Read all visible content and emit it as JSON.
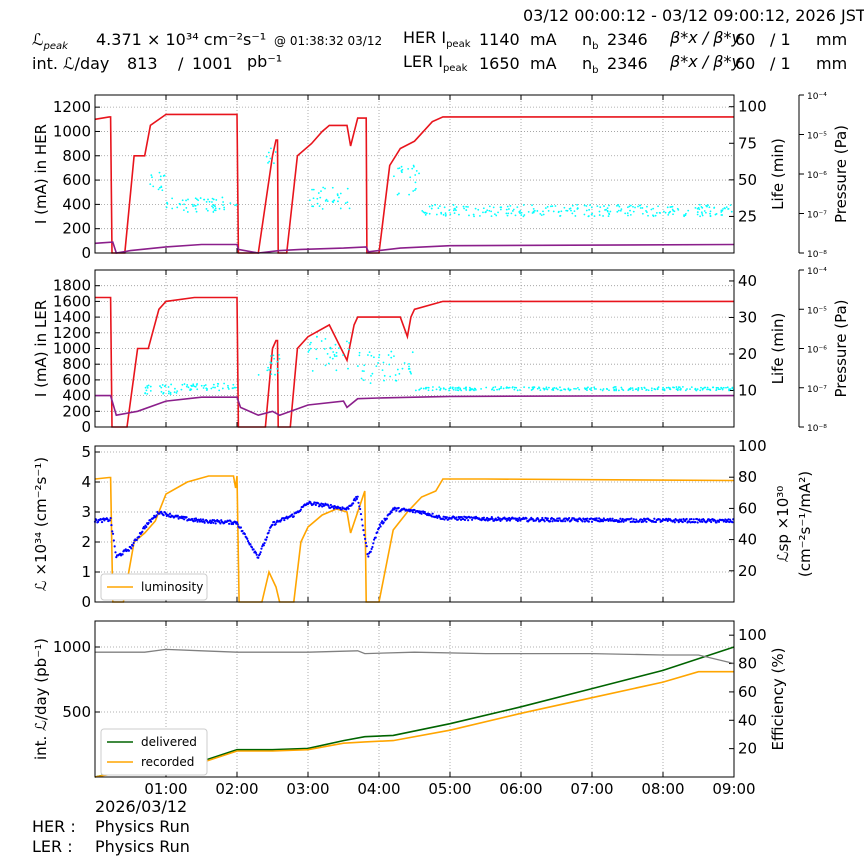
{
  "header": {
    "time_range": "03/12 00:00:12 - 03/12 09:00:12, 2026 JST",
    "lpeak_label": "ℒ",
    "lpeak_sub": "peak",
    "lpeak_value": "4.371",
    "lpeak_unit": "× 10³⁴ cm⁻²s⁻¹",
    "lpeak_time": "@ 01:38:32 03/12",
    "intl_label": "int. ℒ/day",
    "intl_delivered": "813",
    "intl_slash": "/",
    "intl_target": "1001",
    "intl_unit": "pb⁻¹",
    "her_label": "HER I",
    "ler_label": "LER I",
    "ipeak_sub": "peak",
    "her_ipeak": "1140",
    "ler_ipeak": "1650",
    "ma_unit": "mA",
    "nb_label": "n",
    "nb_sub": "b",
    "her_nb": "2346",
    "ler_nb": "2346",
    "beta_label": "β*x / β*y",
    "her_betax": "60",
    "her_betay": "/ 1",
    "ler_betax": "60",
    "ler_betay": "/ 1",
    "mm_unit": "mm"
  },
  "footer": {
    "date": "2026/03/12",
    "her_label": "HER :",
    "her_status": "Physics Run",
    "ler_label": "LER :",
    "ler_status": "Physics Run"
  },
  "colors": {
    "current": "#e8141c",
    "life": "#00ffff",
    "purple": "#8b1f8b",
    "luminosity": "#ffa500",
    "specific": "#0000ff",
    "delivered": "#006400",
    "recorded": "#ffa500",
    "efficiency": "#808080",
    "grid": "#999999"
  },
  "chart_data": [
    {
      "id": "her",
      "type": "line",
      "ylabel": "I (mA) in HER",
      "y2label": "Life (min)",
      "y3label": "Pressure (Pa)",
      "ylim": [
        0,
        1300
      ],
      "yticks": [
        0,
        200,
        400,
        600,
        800,
        1000,
        1200
      ],
      "y2lim": [
        0,
        108
      ],
      "y2ticks": [
        25,
        50,
        75,
        100
      ],
      "y3ticks": [
        "10⁻⁸",
        "10⁻⁷",
        "10⁻⁶",
        "10⁻⁵",
        "10⁻⁴"
      ],
      "series": [
        {
          "role": "current",
          "points": [
            [
              0.0,
              1100
            ],
            [
              0.2,
              1120
            ],
            [
              0.22,
              1120
            ],
            [
              0.24,
              0
            ],
            [
              0.42,
              0
            ],
            [
              0.55,
              800
            ],
            [
              0.7,
              800
            ],
            [
              0.78,
              1050
            ],
            [
              1.0,
              1140
            ],
            [
              2.0,
              1140
            ],
            [
              2.02,
              0
            ],
            [
              2.3,
              0
            ],
            [
              2.5,
              800
            ],
            [
              2.55,
              930
            ],
            [
              2.57,
              930
            ],
            [
              2.58,
              0
            ],
            [
              2.7,
              0
            ],
            [
              2.85,
              800
            ],
            [
              3.05,
              900
            ],
            [
              3.2,
              1000
            ],
            [
              3.3,
              1050
            ],
            [
              3.55,
              1050
            ],
            [
              3.6,
              880
            ],
            [
              3.7,
              1110
            ],
            [
              3.82,
              1110
            ],
            [
              3.83,
              0
            ],
            [
              4.0,
              0
            ],
            [
              4.15,
              720
            ],
            [
              4.3,
              860
            ],
            [
              4.5,
              920
            ],
            [
              4.75,
              1080
            ],
            [
              4.9,
              1120
            ],
            [
              9.0,
              1120
            ]
          ]
        },
        {
          "role": "purple",
          "points": [
            [
              0.0,
              80
            ],
            [
              0.25,
              90
            ],
            [
              0.3,
              0
            ],
            [
              0.5,
              20
            ],
            [
              1.0,
              50
            ],
            [
              1.5,
              70
            ],
            [
              2.0,
              70
            ],
            [
              2.02,
              30
            ],
            [
              2.3,
              0
            ],
            [
              2.6,
              20
            ],
            [
              2.9,
              30
            ],
            [
              3.5,
              40
            ],
            [
              3.82,
              50
            ],
            [
              3.85,
              10
            ],
            [
              4.3,
              40
            ],
            [
              5.0,
              60
            ],
            [
              9.0,
              70
            ]
          ]
        },
        {
          "role": "life",
          "band": [
            [
              0.75,
              1.0,
              40,
              55
            ],
            [
              1.0,
              2.0,
              28,
              38
            ],
            [
              2.4,
              2.55,
              55,
              75
            ],
            [
              3.0,
              3.6,
              30,
              45
            ],
            [
              4.2,
              4.6,
              38,
              60
            ],
            [
              4.6,
              9.0,
              25,
              33
            ]
          ]
        }
      ]
    },
    {
      "id": "ler",
      "type": "line",
      "ylabel": "I (mA) in LER",
      "y2label": "Life (min)",
      "y3label": "Pressure (Pa)",
      "ylim": [
        0,
        2000
      ],
      "yticks": [
        0,
        200,
        400,
        600,
        800,
        1000,
        1200,
        1400,
        1600,
        1800
      ],
      "y2lim": [
        0,
        43
      ],
      "y2ticks": [
        10,
        20,
        30,
        40
      ],
      "y3ticks": [
        "10⁻⁸",
        "10⁻⁷",
        "10⁻⁶",
        "10⁻⁵",
        "10⁻⁴"
      ],
      "series": [
        {
          "role": "current",
          "points": [
            [
              0.0,
              1650
            ],
            [
              0.22,
              1650
            ],
            [
              0.24,
              0
            ],
            [
              0.45,
              0
            ],
            [
              0.6,
              1000
            ],
            [
              0.75,
              1000
            ],
            [
              0.9,
              1500
            ],
            [
              1.0,
              1600
            ],
            [
              1.4,
              1650
            ],
            [
              2.0,
              1650
            ],
            [
              2.02,
              0
            ],
            [
              2.4,
              0
            ],
            [
              2.5,
              1000
            ],
            [
              2.55,
              1100
            ],
            [
              2.57,
              1100
            ],
            [
              2.58,
              0
            ],
            [
              2.75,
              0
            ],
            [
              2.85,
              1000
            ],
            [
              3.0,
              1150
            ],
            [
              3.3,
              1300
            ],
            [
              3.55,
              850
            ],
            [
              3.65,
              1300
            ],
            [
              3.7,
              1400
            ],
            [
              4.3,
              1400
            ],
            [
              4.4,
              1150
            ],
            [
              4.45,
              1400
            ],
            [
              4.5,
              1500
            ],
            [
              4.9,
              1600
            ],
            [
              9.0,
              1600
            ]
          ]
        },
        {
          "role": "purple",
          "points": [
            [
              0.0,
              400
            ],
            [
              0.22,
              400
            ],
            [
              0.3,
              150
            ],
            [
              0.6,
              200
            ],
            [
              1.0,
              330
            ],
            [
              1.5,
              380
            ],
            [
              2.0,
              380
            ],
            [
              2.05,
              250
            ],
            [
              2.3,
              150
            ],
            [
              2.5,
              200
            ],
            [
              2.6,
              150
            ],
            [
              3.0,
              280
            ],
            [
              3.5,
              330
            ],
            [
              3.55,
              250
            ],
            [
              3.7,
              360
            ],
            [
              4.0,
              370
            ],
            [
              4.5,
              380
            ],
            [
              5.0,
              390
            ],
            [
              9.0,
              400
            ]
          ]
        },
        {
          "role": "life",
          "band": [
            [
              0.7,
              1.2,
              9,
              12
            ],
            [
              1.2,
              2.0,
              10,
              12
            ],
            [
              2.3,
              2.6,
              14,
              20
            ],
            [
              3.0,
              3.6,
              15,
              25
            ],
            [
              3.7,
              4.5,
              12,
              21
            ],
            [
              4.5,
              9.0,
              10,
              11
            ]
          ]
        }
      ]
    },
    {
      "id": "lumi",
      "type": "line",
      "ylabel": "ℒ ×10³⁴ (cm⁻²s⁻¹)",
      "y2label": "ℒsp ×10³⁰",
      "y2label_b": "(cm⁻²s⁻¹/mA²)",
      "ylim": [
        0,
        5.2
      ],
      "yticks": [
        0,
        1,
        2,
        3,
        4,
        5
      ],
      "y2lim": [
        0,
        100
      ],
      "y2ticks": [
        20,
        40,
        60,
        80,
        100
      ],
      "legend": [
        "luminosity"
      ],
      "series": [
        {
          "name": "luminosity",
          "role": "luminosity",
          "points": [
            [
              0.0,
              4.1
            ],
            [
              0.2,
              4.15
            ],
            [
              0.22,
              4.15
            ],
            [
              0.25,
              0
            ],
            [
              0.4,
              0
            ],
            [
              0.55,
              2.0
            ],
            [
              0.7,
              2.3
            ],
            [
              0.85,
              2.7
            ],
            [
              1.0,
              3.6
            ],
            [
              1.3,
              4.0
            ],
            [
              1.6,
              4.2
            ],
            [
              1.95,
              4.2
            ],
            [
              1.98,
              3.8
            ],
            [
              2.0,
              4.2
            ],
            [
              2.03,
              0
            ],
            [
              2.35,
              0
            ],
            [
              2.45,
              1.0
            ],
            [
              2.55,
              0.5
            ],
            [
              2.6,
              0
            ],
            [
              2.8,
              0
            ],
            [
              2.9,
              2.0
            ],
            [
              3.0,
              2.5
            ],
            [
              3.2,
              2.9
            ],
            [
              3.4,
              3.1
            ],
            [
              3.55,
              3.0
            ],
            [
              3.6,
              2.3
            ],
            [
              3.8,
              3.7
            ],
            [
              3.82,
              0
            ],
            [
              4.0,
              0
            ],
            [
              4.2,
              2.4
            ],
            [
              4.4,
              3.0
            ],
            [
              4.6,
              3.5
            ],
            [
              4.8,
              3.7
            ],
            [
              4.9,
              4.1
            ],
            [
              5.5,
              4.1
            ],
            [
              9.0,
              4.05
            ]
          ]
        },
        {
          "role": "specific",
          "points": [
            [
              0.0,
              2.7
            ],
            [
              0.22,
              2.75
            ],
            [
              0.3,
              1.5
            ],
            [
              0.5,
              1.8
            ],
            [
              0.7,
              2.5
            ],
            [
              0.9,
              3.0
            ],
            [
              1.2,
              2.8
            ],
            [
              1.5,
              2.7
            ],
            [
              2.0,
              2.65
            ],
            [
              2.3,
              1.5
            ],
            [
              2.5,
              2.6
            ],
            [
              2.8,
              2.9
            ],
            [
              3.0,
              3.3
            ],
            [
              3.3,
              3.2
            ],
            [
              3.55,
              3.1
            ],
            [
              3.7,
              3.5
            ],
            [
              3.85,
              1.5
            ],
            [
              4.0,
              2.5
            ],
            [
              4.2,
              3.1
            ],
            [
              4.6,
              3.0
            ],
            [
              4.9,
              2.8
            ],
            [
              6.0,
              2.75
            ],
            [
              9.0,
              2.7
            ]
          ]
        }
      ]
    },
    {
      "id": "intl",
      "type": "line",
      "ylabel": "int. ℒ/day (pb⁻¹)",
      "y2label": "Efficiency (%)",
      "xlabel_date": "2026/03/12",
      "xlim": [
        0,
        9
      ],
      "xticks": [
        "01:00",
        "02:00",
        "03:00",
        "04:00",
        "05:00",
        "06:00",
        "07:00",
        "08:00",
        "09:00"
      ],
      "ylim": [
        0,
        1200
      ],
      "yticks": [
        500,
        1000
      ],
      "y2lim": [
        0,
        110
      ],
      "y2ticks": [
        20,
        40,
        60,
        80,
        100
      ],
      "legend": [
        "delivered",
        "recorded"
      ],
      "series": [
        {
          "name": "delivered",
          "role": "delivered",
          "points": [
            [
              0.0,
              0
            ],
            [
              0.25,
              30
            ],
            [
              1.0,
              80
            ],
            [
              1.5,
              120
            ],
            [
              2.0,
              210
            ],
            [
              2.5,
              210
            ],
            [
              3.0,
              220
            ],
            [
              3.5,
              280
            ],
            [
              3.8,
              310
            ],
            [
              4.2,
              320
            ],
            [
              5.0,
              410
            ],
            [
              6.0,
              540
            ],
            [
              7.0,
              680
            ],
            [
              8.0,
              820
            ],
            [
              9.0,
              1000
            ]
          ]
        },
        {
          "name": "recorded",
          "role": "recorded",
          "points": [
            [
              0.0,
              0
            ],
            [
              0.25,
              25
            ],
            [
              1.0,
              75
            ],
            [
              1.5,
              110
            ],
            [
              2.0,
              200
            ],
            [
              2.5,
              200
            ],
            [
              3.0,
              210
            ],
            [
              3.5,
              260
            ],
            [
              3.8,
              270
            ],
            [
              4.2,
              280
            ],
            [
              5.0,
              360
            ],
            [
              6.0,
              490
            ],
            [
              7.0,
              610
            ],
            [
              8.0,
              730
            ],
            [
              8.5,
              810
            ],
            [
              9.0,
              810
            ]
          ]
        },
        {
          "role": "efficiency",
          "axis": "y2",
          "points": [
            [
              0.0,
              88
            ],
            [
              0.7,
              88
            ],
            [
              1.0,
              90
            ],
            [
              1.5,
              89
            ],
            [
              2.0,
              88
            ],
            [
              3.0,
              88
            ],
            [
              3.7,
              89
            ],
            [
              3.8,
              87
            ],
            [
              4.5,
              88
            ],
            [
              5.5,
              87
            ],
            [
              7.0,
              87
            ],
            [
              8.0,
              86
            ],
            [
              8.5,
              86
            ],
            [
              9.0,
              80
            ]
          ]
        }
      ]
    }
  ]
}
